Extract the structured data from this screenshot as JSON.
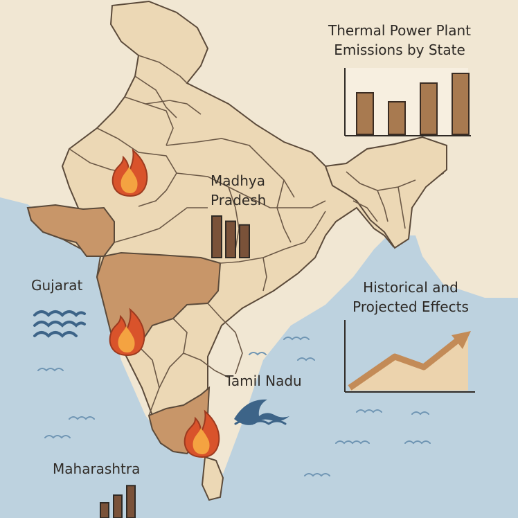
{
  "labels": {
    "madhya_line1": "Madhya",
    "madhya_line2": "Pradesh",
    "gujarat": "Gujarat",
    "tamil_nadu": "Tamil Nadu",
    "maharashtra": "Maharashtra"
  },
  "thermal_chart": {
    "title_line1": "Thermal Power Plant",
    "title_line2": "Emissions by State",
    "bar_values": [
      0.6,
      0.47,
      0.74,
      0.88
    ]
  },
  "effects_chart": {
    "title_line1": "Historical and",
    "title_line2": "Projected Effects"
  },
  "mini_charts": {
    "madhya_bars": [
      0.8,
      0.7,
      0.63
    ],
    "maharashtra_bars": [
      0.4,
      0.6,
      0.85
    ]
  },
  "icons": [
    "flame-icon",
    "wave-icon",
    "shark-fin-icon",
    "bar-chart-icon",
    "line-chart-icon"
  ],
  "colors": {
    "sea": "#bdd2df",
    "land": "#ecd8b5",
    "highlight_state": "#c89669",
    "bar": "#a87a50",
    "mini_bar": "#7a5239",
    "flame_outer": "#d9532b",
    "flame_inner": "#f4a341",
    "wave": "#3d6488"
  }
}
